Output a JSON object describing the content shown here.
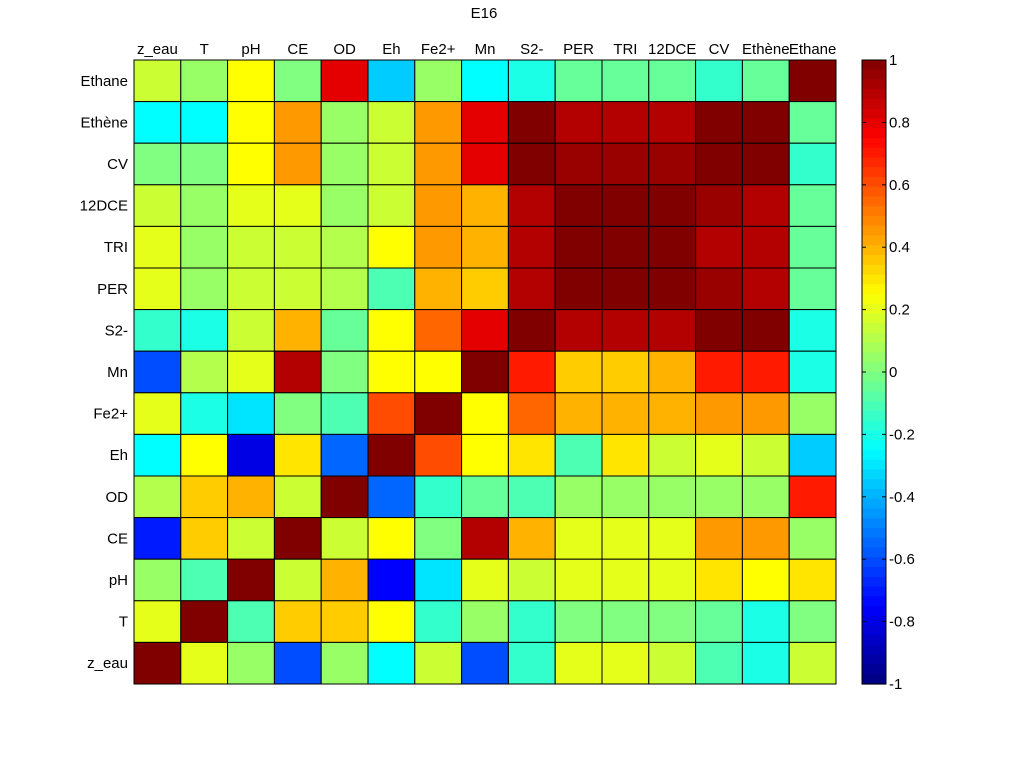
{
  "chart_data": {
    "type": "heatmap",
    "title": "E16",
    "column_labels": [
      "z_eau",
      "T",
      "pH",
      "CE",
      "OD",
      "Eh",
      "Fe2+",
      "Mn",
      "S2-",
      "PER",
      "TRI",
      "12DCE",
      "CV",
      "Ethène",
      "Ethane"
    ],
    "row_labels": [
      "Ethane",
      "Ethène",
      "CV",
      "12DCE",
      "TRI",
      "PER",
      "S2-",
      "Mn",
      "Fe2+",
      "Eh",
      "OD",
      "CE",
      "pH",
      "T",
      "z_eau"
    ],
    "values": [
      [
        0.15,
        0.05,
        0.25,
        0.0,
        0.8,
        -0.35,
        0.05,
        -0.25,
        -0.2,
        -0.05,
        -0.05,
        -0.05,
        -0.15,
        -0.05,
        1.0
      ],
      [
        -0.25,
        -0.25,
        0.25,
        0.45,
        0.05,
        0.15,
        0.45,
        0.8,
        1.0,
        0.9,
        0.9,
        0.9,
        1.0,
        1.0,
        -0.05
      ],
      [
        0.0,
        0.0,
        0.25,
        0.45,
        0.05,
        0.15,
        0.45,
        0.8,
        1.0,
        0.95,
        0.95,
        0.95,
        1.0,
        1.0,
        -0.15
      ],
      [
        0.15,
        0.05,
        0.2,
        0.2,
        0.05,
        0.15,
        0.45,
        0.4,
        0.9,
        1.0,
        1.0,
        1.0,
        0.95,
        0.9,
        -0.05
      ],
      [
        0.2,
        0.05,
        0.15,
        0.15,
        0.1,
        0.25,
        0.45,
        0.4,
        0.9,
        1.0,
        1.0,
        1.0,
        0.9,
        0.9,
        -0.05
      ],
      [
        0.2,
        0.05,
        0.15,
        0.15,
        0.1,
        -0.1,
        0.4,
        0.35,
        0.9,
        1.0,
        1.0,
        1.0,
        0.95,
        0.9,
        -0.05
      ],
      [
        -0.15,
        -0.2,
        0.15,
        0.4,
        -0.05,
        0.25,
        0.55,
        0.8,
        1.0,
        0.9,
        0.9,
        0.9,
        1.0,
        1.0,
        -0.2
      ],
      [
        -0.6,
        0.1,
        0.2,
        0.9,
        0.0,
        0.25,
        0.25,
        1.0,
        0.7,
        0.35,
        0.35,
        0.4,
        0.7,
        0.7,
        -0.2
      ],
      [
        0.2,
        -0.2,
        -0.3,
        0.0,
        -0.1,
        0.6,
        1.0,
        0.25,
        0.55,
        0.4,
        0.4,
        0.4,
        0.45,
        0.45,
        0.05
      ],
      [
        -0.25,
        0.25,
        -0.8,
        0.3,
        -0.55,
        1.0,
        0.6,
        0.25,
        0.3,
        -0.1,
        0.3,
        0.15,
        0.2,
        0.15,
        -0.35
      ],
      [
        0.1,
        0.35,
        0.4,
        0.15,
        1.0,
        -0.55,
        -0.15,
        -0.05,
        -0.1,
        0.05,
        0.05,
        0.05,
        0.05,
        0.05,
        0.7
      ],
      [
        -0.7,
        0.35,
        0.15,
        1.0,
        0.15,
        0.25,
        0.0,
        0.9,
        0.4,
        0.2,
        0.2,
        0.2,
        0.45,
        0.45,
        0.05
      ],
      [
        0.05,
        -0.1,
        1.0,
        0.15,
        0.4,
        -0.75,
        -0.3,
        0.2,
        0.15,
        0.2,
        0.2,
        0.2,
        0.3,
        0.25,
        0.3
      ],
      [
        0.2,
        1.0,
        -0.1,
        0.35,
        0.35,
        0.25,
        -0.15,
        0.05,
        -0.15,
        0.0,
        0.0,
        0.0,
        -0.05,
        -0.2,
        0.0
      ],
      [
        1.0,
        0.2,
        0.05,
        -0.6,
        0.05,
        -0.25,
        0.15,
        -0.6,
        -0.15,
        0.2,
        0.2,
        0.15,
        -0.1,
        -0.2,
        0.15
      ]
    ],
    "colorbar": {
      "range": [
        -1,
        1
      ],
      "ticks": [
        "1",
        "0.8",
        "0.6",
        "0.4",
        "0.2",
        "0",
        "-0.2",
        "-0.4",
        "-0.6",
        "-0.8",
        "-1"
      ]
    },
    "colormap": "jet"
  }
}
